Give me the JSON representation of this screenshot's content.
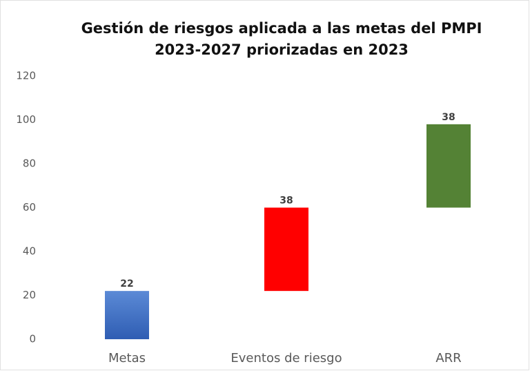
{
  "chart_data": {
    "type": "waterfall",
    "title": [
      "Gestión de riesgos aplicada a las metas del PMPI",
      "2023-2027 priorizadas en 2023"
    ],
    "categories": [
      "Metas",
      "Eventos de riesgo",
      "ARR"
    ],
    "values": [
      22,
      38,
      38
    ],
    "colors": [
      "#4472c4",
      "#ff0000",
      "#548235"
    ],
    "ylim": [
      0,
      120
    ],
    "yticks": [
      0,
      20,
      40,
      60,
      80,
      100,
      120
    ],
    "grid": false
  }
}
